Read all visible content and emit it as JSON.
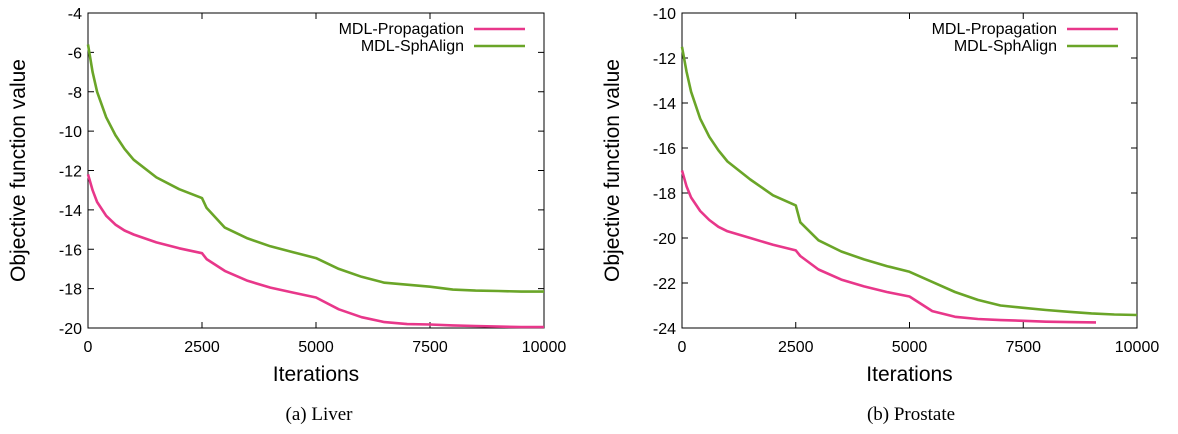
{
  "figure": {
    "captions": [
      "(a)  Liver",
      "(b)  Prostate"
    ]
  },
  "colors": {
    "propagation": "#e8378a",
    "sphalign": "#6aa528",
    "axis": "#000000"
  },
  "chart_data": [
    {
      "type": "line",
      "title": "",
      "xlabel": "Iterations",
      "ylabel": "Objective function value",
      "xlim": [
        0,
        10000
      ],
      "ylim": [
        -20,
        -4
      ],
      "xticks": [
        0,
        2500,
        5000,
        7500,
        10000
      ],
      "yticks": [
        -4,
        -6,
        -8,
        -10,
        -12,
        -14,
        -16,
        -18,
        -20
      ],
      "legend": "top-right",
      "series": [
        {
          "name": "MDL-Propagation",
          "color": "#e8378a",
          "x": [
            0,
            100,
            200,
            400,
            600,
            800,
            1000,
            1500,
            2000,
            2500,
            2600,
            3000,
            3500,
            4000,
            4500,
            5000,
            5500,
            6000,
            6500,
            7000,
            7500,
            8000,
            8500,
            9000,
            9500,
            10000
          ],
          "y": [
            -12.2,
            -13.0,
            -13.6,
            -14.3,
            -14.75,
            -15.05,
            -15.25,
            -15.65,
            -15.95,
            -16.2,
            -16.5,
            -17.1,
            -17.6,
            -17.95,
            -18.2,
            -18.45,
            -19.05,
            -19.45,
            -19.7,
            -19.8,
            -19.82,
            -19.87,
            -19.9,
            -19.93,
            -19.95,
            -19.95
          ]
        },
        {
          "name": "MDL-SphAlign",
          "color": "#6aa528",
          "x": [
            0,
            100,
            200,
            400,
            600,
            800,
            1000,
            1500,
            2000,
            2500,
            2600,
            3000,
            3500,
            4000,
            4500,
            5000,
            5500,
            6000,
            6500,
            7000,
            7500,
            8000,
            8500,
            9000,
            9500,
            10000
          ],
          "y": [
            -5.6,
            -7.0,
            -8.0,
            -9.3,
            -10.2,
            -10.9,
            -11.45,
            -12.35,
            -12.95,
            -13.4,
            -13.9,
            -14.9,
            -15.45,
            -15.85,
            -16.15,
            -16.45,
            -17.0,
            -17.4,
            -17.7,
            -17.8,
            -17.9,
            -18.05,
            -18.1,
            -18.12,
            -18.15,
            -18.15
          ]
        }
      ]
    },
    {
      "type": "line",
      "title": "",
      "xlabel": "Iterations",
      "ylabel": "Objective function value",
      "xlim": [
        0,
        10000
      ],
      "ylim": [
        -24,
        -10
      ],
      "xticks": [
        0,
        2500,
        5000,
        7500,
        10000
      ],
      "yticks": [
        -10,
        -12,
        -14,
        -16,
        -18,
        -20,
        -22,
        -24
      ],
      "legend": "top-right",
      "series": [
        {
          "name": "MDL-Propagation",
          "color": "#e8378a",
          "x": [
            0,
            100,
            200,
            400,
            600,
            800,
            1000,
            1500,
            2000,
            2500,
            2600,
            3000,
            3500,
            4000,
            4500,
            5000,
            5500,
            6000,
            6500,
            7000,
            7500,
            8000,
            8500,
            9100
          ],
          "y": [
            -17.0,
            -17.7,
            -18.2,
            -18.8,
            -19.2,
            -19.5,
            -19.7,
            -20.0,
            -20.3,
            -20.55,
            -20.8,
            -21.4,
            -21.85,
            -22.15,
            -22.4,
            -22.6,
            -23.25,
            -23.5,
            -23.6,
            -23.65,
            -23.68,
            -23.72,
            -23.74,
            -23.75
          ]
        },
        {
          "name": "MDL-SphAlign",
          "color": "#6aa528",
          "x": [
            0,
            100,
            200,
            400,
            600,
            800,
            1000,
            1500,
            2000,
            2500,
            2600,
            3000,
            3500,
            4000,
            4500,
            5000,
            5500,
            6000,
            6500,
            7000,
            7500,
            8000,
            8500,
            9000,
            9500,
            10000
          ],
          "y": [
            -11.5,
            -12.6,
            -13.5,
            -14.7,
            -15.5,
            -16.1,
            -16.6,
            -17.4,
            -18.1,
            -18.55,
            -19.3,
            -20.1,
            -20.6,
            -20.95,
            -21.25,
            -21.5,
            -21.95,
            -22.4,
            -22.75,
            -23.0,
            -23.1,
            -23.2,
            -23.28,
            -23.35,
            -23.4,
            -23.42
          ]
        }
      ]
    }
  ]
}
